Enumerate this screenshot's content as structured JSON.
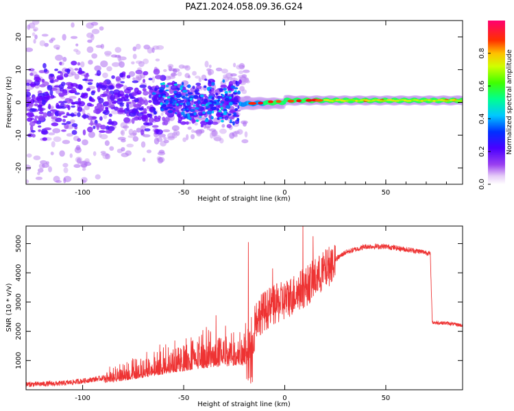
{
  "title": "PAZ1.2024.058.09.36.G24",
  "chart_data": [
    {
      "type": "heatmap",
      "xlabel": "Height of straight line (km)",
      "ylabel": "Frequency (Hz)",
      "xlim": [
        -128,
        88
      ],
      "ylim": [
        -25,
        25
      ],
      "xticks": [
        -100,
        -50,
        0,
        50
      ],
      "yticks": [
        -20,
        -10,
        0,
        10,
        20
      ],
      "colorbar": {
        "label": "Normalized spectral amplitude",
        "range": [
          0.0,
          1.0
        ],
        "ticks": [
          "0.0",
          "0.2",
          "0.4",
          "0.6",
          "0.8"
        ],
        "colormap": [
          "#e8d4f7",
          "#b070f0",
          "#6a00ff",
          "#1a20ff",
          "#00c8ff",
          "#00ff80",
          "#80ff00",
          "#ffee00",
          "#ff8000",
          "#ff0000",
          "#ff0080"
        ]
      },
      "description_regions": [
        {
          "x_range": [
            -128,
            -90
          ],
          "freq_spread": 25,
          "amplitude": 0.1
        },
        {
          "x_range": [
            -90,
            -20
          ],
          "freq_spread": 9,
          "amplitude": 0.2
        },
        {
          "x_range": [
            -20,
            88
          ],
          "freq_center": 0.5,
          "freq_spread": 1.5,
          "amplitude": 0.55
        }
      ],
      "grid": false
    },
    {
      "type": "line",
      "xlabel": "Height of straight line (km)",
      "ylabel": "SNR (10 * v/v)",
      "xlim": [
        -128,
        88
      ],
      "ylim": [
        0,
        5600
      ],
      "xticks": [
        -100,
        -50,
        0,
        50
      ],
      "yticks": [
        1000,
        2000,
        3000,
        4000,
        5000
      ],
      "color": "#ee3333",
      "envelope": {
        "x": [
          -128,
          -110,
          -100,
          -90,
          -80,
          -70,
          -60,
          -50,
          -40,
          -30,
          -22,
          -18,
          -15,
          -10,
          -5,
          0,
          5,
          10,
          15,
          20,
          25,
          30,
          40,
          50,
          60,
          70,
          72,
          73,
          80,
          88
        ],
        "y": [
          180,
          220,
          300,
          400,
          550,
          750,
          950,
          1150,
          1350,
          1450,
          1500,
          1550,
          2400,
          2700,
          2900,
          3050,
          3300,
          3500,
          3800,
          4100,
          4450,
          4700,
          4900,
          4900,
          4800,
          4700,
          4650,
          2300,
          2280,
          2200
        ]
      },
      "spikes": [
        {
          "x": -18,
          "y": 5050
        },
        {
          "x": 9,
          "y": 5600
        },
        {
          "x": 14,
          "y": 5250
        },
        {
          "x": -6,
          "y": 4150
        },
        {
          "x": -34,
          "y": 2550
        }
      ],
      "grid": false
    }
  ]
}
